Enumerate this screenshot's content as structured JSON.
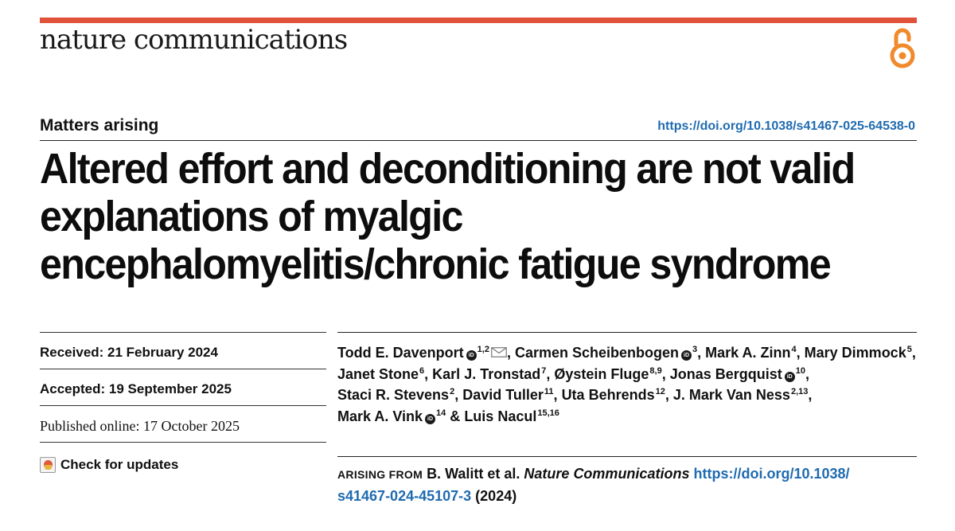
{
  "colors": {
    "accent_bar": "#e0533a",
    "open_access": "#f08a2c",
    "link": "#1f6bb0"
  },
  "header": {
    "journal_name": "nature communications",
    "open_access_icon": "open-access-lock-icon"
  },
  "article": {
    "section_label": "Matters arising",
    "doi": "https://doi.org/10.1038/s41467-025-64538-0",
    "title": "Altered effort and deconditioning are not valid explanations of myalgic encephalomyelitis/chronic fatigue syndrome"
  },
  "dates": {
    "received": "Received: 21 February 2024",
    "accepted": "Accepted: 19 September 2025",
    "published": "Published online: 17 October 2025",
    "check_updates": "Check for updates"
  },
  "authors": [
    {
      "name": "Todd E. Davenport",
      "orcid": true,
      "aff": "1,2",
      "corresponding": true
    },
    {
      "name": "Carmen Scheibenbogen",
      "orcid": true,
      "aff": "3"
    },
    {
      "name": "Mark A. Zinn",
      "aff": "4"
    },
    {
      "name": "Mary Dimmock",
      "aff": "5"
    },
    {
      "name": "Janet Stone",
      "aff": "6"
    },
    {
      "name": "Karl J. Tronstad",
      "aff": "7"
    },
    {
      "name": "Øystein Fluge",
      "aff": "8,9"
    },
    {
      "name": "Jonas Bergquist",
      "orcid": true,
      "aff": "10"
    },
    {
      "name": "Staci R. Stevens",
      "aff": "2"
    },
    {
      "name": "David Tuller",
      "aff": "11"
    },
    {
      "name": "Uta Behrends",
      "aff": "12"
    },
    {
      "name": "J. Mark Van Ness",
      "aff": "2,13"
    },
    {
      "name": "Mark A. Vink",
      "orcid": true,
      "aff": "14"
    },
    {
      "name": "Luis Nacul",
      "aff": "15,16"
    }
  ],
  "arising": {
    "label": "ARISING FROM",
    "authors": "B. Walitt et al.",
    "journal": "Nature Communications",
    "doi_line1": "https://doi.org/10.1038/",
    "doi_line2": "s41467-024-45107-3",
    "year": "(2024)"
  }
}
